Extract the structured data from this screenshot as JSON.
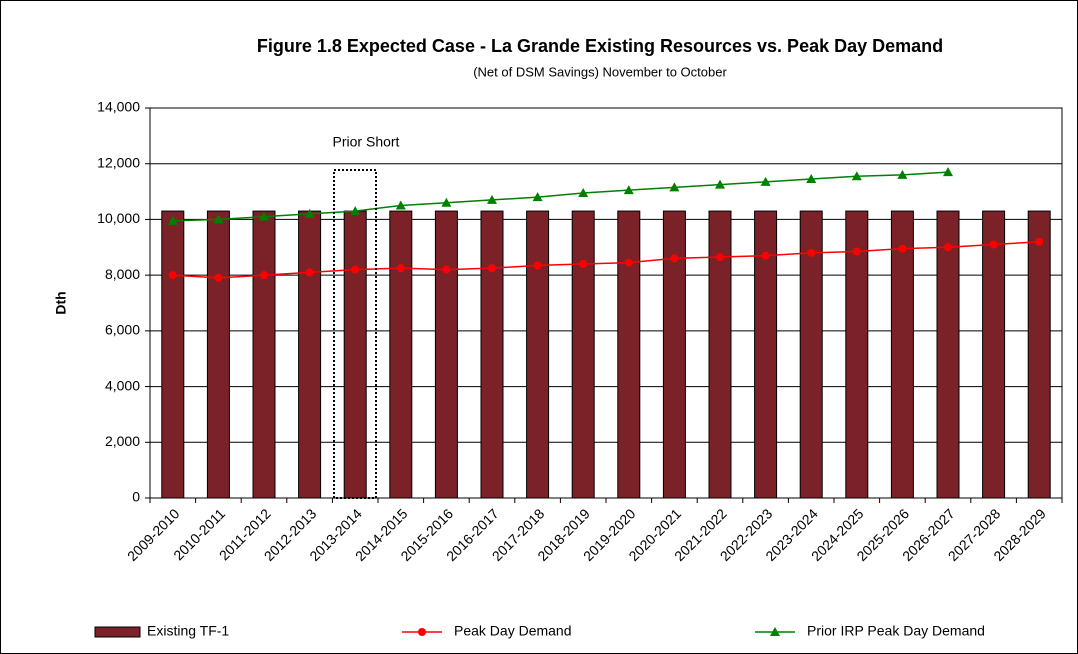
{
  "chart_data": {
    "type": "bar",
    "title": "Figure 1.8  Expected Case - La Grande Existing Resources vs. Peak Day Demand",
    "subtitle": "(Net of DSM Savings) November to October",
    "y_label": "Dth",
    "annotation": "Prior Short",
    "categories": [
      "2009-2010",
      "2010-2011",
      "2011-2012",
      "2012-2013",
      "2013-2014",
      "2014-2015",
      "2015-2016",
      "2016-2017",
      "2017-2018",
      "2018-2019",
      "2019-2020",
      "2020-2021",
      "2021-2022",
      "2022-2023",
      "2023-2024",
      "2024-2025",
      "2025-2026",
      "2026-2027",
      "2027-2028",
      "2028-2029"
    ],
    "series": [
      {
        "name": "Existing TF-1",
        "type": "bar",
        "color": "#7b2228",
        "values": [
          10300,
          10300,
          10300,
          10300,
          10300,
          10300,
          10300,
          10300,
          10300,
          10300,
          10300,
          10300,
          10300,
          10300,
          10300,
          10300,
          10300,
          10300,
          10300,
          10300
        ]
      },
      {
        "name": "Peak Day Demand",
        "type": "line",
        "marker": "circle",
        "color": "#ff0000",
        "values": [
          8000,
          7900,
          8000,
          8100,
          8200,
          8250,
          8200,
          8250,
          8350,
          8400,
          8450,
          8600,
          8650,
          8700,
          8800,
          8850,
          8950,
          9000,
          9100,
          9200
        ]
      },
      {
        "name": "Prior IRP Peak Day Demand",
        "type": "line",
        "marker": "triangle",
        "color": "#008000",
        "values": [
          9950,
          10000,
          10100,
          10200,
          10300,
          10500,
          10600,
          10700,
          10800,
          10950,
          11050,
          11150,
          11250,
          11350,
          11450,
          11550,
          11600,
          11700,
          null,
          null
        ]
      }
    ],
    "ylim": [
      0,
      14000
    ],
    "yticks": [
      0,
      {
        "value": 2000,
        "label": "2,000"
      },
      {
        "value": 4000,
        "label": "4,000"
      },
      {
        "value": 6000,
        "label": "6,000"
      },
      {
        "value": 8000,
        "label": "8,000"
      },
      {
        "value": 10000,
        "label": "10,000"
      },
      {
        "value": 12000,
        "label": "12,000"
      },
      {
        "value": 14000,
        "label": "14,000"
      }
    ],
    "grid": true,
    "legend": "bottom"
  }
}
